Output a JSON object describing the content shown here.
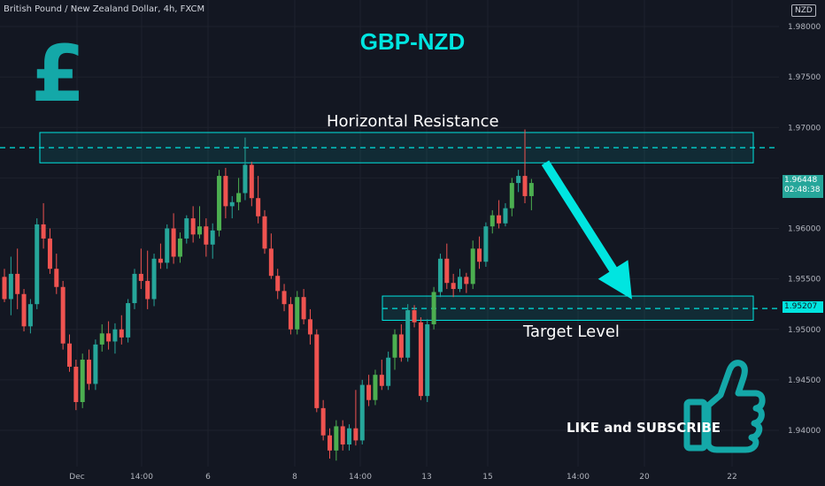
{
  "header": {
    "symbol_info": "British Pound / New Zealand Dollar, 4h, FXCM",
    "currency": "NZD"
  },
  "overlay": {
    "title": "GBP-NZD",
    "pound_symbol": "£",
    "resistance_label": "Horizontal Resistance",
    "target_label": "Target Level",
    "cta": "LIKE and SUBSCRIBE"
  },
  "colors": {
    "background": "#131722",
    "up": "#26a69a",
    "up_vivid": "#4caf50",
    "down": "#ef5350",
    "accent": "#00e5e0",
    "pound": "#14a8a8"
  },
  "price_tags": {
    "current_price": "1.96448",
    "countdown": "02:48:38",
    "target_price": "1.95207"
  },
  "chart_data": {
    "type": "candlestick",
    "ylim": [
      1.9365,
      1.9815
    ],
    "y_ticks": [
      "1.98000",
      "1.97500",
      "1.97000",
      "1.96500",
      "1.96000",
      "1.95500",
      "1.95000",
      "1.94500",
      "1.94000"
    ],
    "x_ticks": [
      "Dec",
      "14:00",
      "6",
      "8",
      "14:00",
      "13",
      "15",
      "14:00",
      "20",
      "22"
    ],
    "resistance_zone": [
      1.9665,
      1.9695
    ],
    "resistance_line": 1.968,
    "target_zone": [
      1.9509,
      1.9533
    ],
    "target_line": 1.95207,
    "arrow": {
      "from_price": 1.9665,
      "to_price": 1.9535
    },
    "candles": [
      [
        1.9552,
        1.956,
        1.9527,
        1.953
      ],
      [
        1.953,
        1.9572,
        1.9514,
        1.9555
      ],
      [
        1.9555,
        1.958,
        1.952,
        1.9535
      ],
      [
        1.9535,
        1.954,
        1.9498,
        1.9503
      ],
      [
        1.9503,
        1.953,
        1.9496,
        1.9525
      ],
      [
        1.9525,
        1.961,
        1.952,
        1.9604
      ],
      [
        1.9604,
        1.9625,
        1.958,
        1.959
      ],
      [
        1.959,
        1.96,
        1.9555,
        1.956
      ],
      [
        1.956,
        1.9575,
        1.9535,
        1.9542
      ],
      [
        1.9542,
        1.9548,
        1.948,
        1.9486
      ],
      [
        1.9486,
        1.9495,
        1.9458,
        1.9463
      ],
      [
        1.9463,
        1.947,
        1.942,
        1.9428
      ],
      [
        1.9428,
        1.9476,
        1.9422,
        1.947
      ],
      [
        1.947,
        1.948,
        1.944,
        1.9446
      ],
      [
        1.9446,
        1.949,
        1.944,
        1.9485
      ],
      [
        1.9485,
        1.9505,
        1.9478,
        1.9496
      ],
      [
        1.9496,
        1.9508,
        1.948,
        1.9488
      ],
      [
        1.9488,
        1.9506,
        1.9476,
        1.95
      ],
      [
        1.95,
        1.9514,
        1.9485,
        1.9492
      ],
      [
        1.9492,
        1.953,
        1.9487,
        1.9526
      ],
      [
        1.9526,
        1.956,
        1.952,
        1.9555
      ],
      [
        1.9555,
        1.958,
        1.954,
        1.9548
      ],
      [
        1.9548,
        1.9578,
        1.952,
        1.953
      ],
      [
        1.953,
        1.9575,
        1.9523,
        1.957
      ],
      [
        1.957,
        1.9585,
        1.956,
        1.9566
      ],
      [
        1.9566,
        1.9604,
        1.956,
        1.96
      ],
      [
        1.96,
        1.9615,
        1.9565,
        1.9572
      ],
      [
        1.9572,
        1.9596,
        1.9566,
        1.959
      ],
      [
        1.959,
        1.9613,
        1.9585,
        1.961
      ],
      [
        1.961,
        1.9622,
        1.9586,
        1.9594
      ],
      [
        1.9594,
        1.9622,
        1.959,
        1.9602
      ],
      [
        1.9602,
        1.961,
        1.9572,
        1.9584
      ],
      [
        1.9584,
        1.9605,
        1.957,
        1.9598
      ],
      [
        1.9598,
        1.9658,
        1.9592,
        1.9652
      ],
      [
        1.9652,
        1.966,
        1.961,
        1.9622
      ],
      [
        1.9622,
        1.9632,
        1.961,
        1.9626
      ],
      [
        1.9626,
        1.965,
        1.9618,
        1.9635
      ],
      [
        1.9635,
        1.969,
        1.9628,
        1.9663
      ],
      [
        1.9663,
        1.9666,
        1.9622,
        1.963
      ],
      [
        1.963,
        1.9652,
        1.9605,
        1.9612
      ],
      [
        1.9612,
        1.9618,
        1.9575,
        1.958
      ],
      [
        1.958,
        1.9595,
        1.955,
        1.9553
      ],
      [
        1.9553,
        1.956,
        1.953,
        1.9538
      ],
      [
        1.9538,
        1.9545,
        1.9518,
        1.9525
      ],
      [
        1.9525,
        1.9532,
        1.9495,
        1.95
      ],
      [
        1.95,
        1.9538,
        1.9495,
        1.9532
      ],
      [
        1.9532,
        1.954,
        1.9505,
        1.951
      ],
      [
        1.951,
        1.952,
        1.9485,
        1.9495
      ],
      [
        1.9495,
        1.95,
        1.9418,
        1.9422
      ],
      [
        1.9422,
        1.943,
        1.939,
        1.9395
      ],
      [
        1.9395,
        1.9402,
        1.9372,
        1.938
      ],
      [
        1.938,
        1.941,
        1.937,
        1.9404
      ],
      [
        1.9404,
        1.941,
        1.938,
        1.9386
      ],
      [
        1.9386,
        1.9406,
        1.938,
        1.9402
      ],
      [
        1.9402,
        1.944,
        1.9385,
        1.939
      ],
      [
        1.939,
        1.945,
        1.9386,
        1.9445
      ],
      [
        1.9445,
        1.9455,
        1.9424,
        1.943
      ],
      [
        1.943,
        1.946,
        1.9425,
        1.9455
      ],
      [
        1.9455,
        1.947,
        1.944,
        1.9444
      ],
      [
        1.9444,
        1.9478,
        1.944,
        1.9472
      ],
      [
        1.9472,
        1.95,
        1.946,
        1.9495
      ],
      [
        1.9495,
        1.9505,
        1.9468,
        1.9472
      ],
      [
        1.9472,
        1.9525,
        1.9468,
        1.9519
      ],
      [
        1.9519,
        1.9524,
        1.9502,
        1.9507
      ],
      [
        1.9507,
        1.9512,
        1.943,
        1.9434
      ],
      [
        1.9434,
        1.951,
        1.9428,
        1.9505
      ],
      [
        1.9505,
        1.9542,
        1.95,
        1.9537
      ],
      [
        1.9537,
        1.9575,
        1.9532,
        1.957
      ],
      [
        1.957,
        1.9585,
        1.954,
        1.9546
      ],
      [
        1.9546,
        1.9555,
        1.9532,
        1.954
      ],
      [
        1.954,
        1.956,
        1.9537,
        1.9552
      ],
      [
        1.9552,
        1.9556,
        1.9536,
        1.9545
      ],
      [
        1.9545,
        1.9588,
        1.954,
        1.958
      ],
      [
        1.958,
        1.9592,
        1.956,
        1.9567
      ],
      [
        1.9567,
        1.9606,
        1.9562,
        1.9602
      ],
      [
        1.9602,
        1.9618,
        1.9595,
        1.9613
      ],
      [
        1.9613,
        1.9628,
        1.96,
        1.9605
      ],
      [
        1.9605,
        1.9625,
        1.9602,
        1.962
      ],
      [
        1.962,
        1.965,
        1.9612,
        1.9645
      ],
      [
        1.9645,
        1.9658,
        1.9636,
        1.9652
      ],
      [
        1.9652,
        1.9698,
        1.9625,
        1.9632
      ],
      [
        1.9632,
        1.9649,
        1.9618,
        1.9645
      ]
    ]
  }
}
